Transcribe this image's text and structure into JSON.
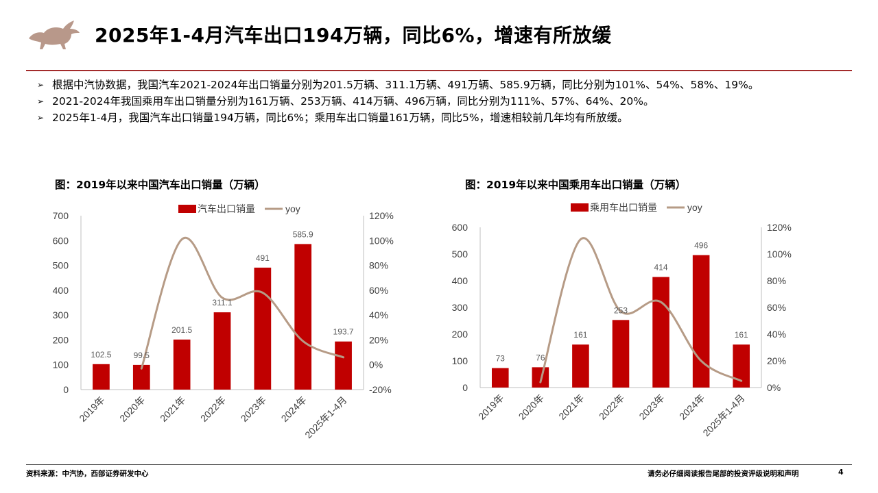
{
  "header": {
    "title": "2025年1-4月汽车出口194万辆，同比6%，增速有所放缓"
  },
  "bullets": [
    "根据中汽协数据，我国汽车2021-2024年出口销量分别为201.5万辆、311.1万辆、491万辆、585.9万辆，同比分别为101%、54%、58%、19%。",
    "2021-2024年我国乘用车出口销量分别为161万辆、253万辆、414万辆、496万辆，同比分别为111%、57%、64%、20%。",
    "2025年1-4月，我国汽车出口销量194万辆，同比6%；乘用车出口销量161万辆，同比5%，增速相较前几年均有所放缓。"
  ],
  "colors": {
    "bar": "#c00000",
    "line": "#b69b86",
    "accent": "#a32b2b"
  },
  "chart_data": [
    {
      "type": "bar",
      "title": "图：2019年以来中国汽车出口销量（万辆）",
      "categories": [
        "2019年",
        "2020年",
        "2021年",
        "2022年",
        "2023年",
        "2024年",
        "2025年1-4月"
      ],
      "series": [
        {
          "name": "汽车出口销量",
          "type": "bar",
          "axis": "left",
          "values": [
            102.5,
            99.5,
            201.5,
            311.1,
            491,
            585.9,
            193.7
          ]
        },
        {
          "name": "yoy",
          "type": "line",
          "axis": "right",
          "values": [
            null,
            -3,
            101,
            54,
            58,
            19,
            6
          ]
        }
      ],
      "data_labels": [
        "102.5",
        "99.5",
        "201.5",
        "311.1",
        "491",
        "585.9",
        "193.7"
      ],
      "ylim_left": [
        0,
        700
      ],
      "yticks_left": [
        "0",
        "100",
        "200",
        "300",
        "400",
        "500",
        "600",
        "700"
      ],
      "ylim_right": [
        -20,
        120
      ],
      "yticks_right": [
        "-20%",
        "0%",
        "20%",
        "40%",
        "60%",
        "80%",
        "100%",
        "120%"
      ],
      "legend": "top",
      "grid": false
    },
    {
      "type": "bar",
      "title": "图：2019年以来中国乘用车出口销量（万辆）",
      "categories": [
        "2019年",
        "2020年",
        "2021年",
        "2022年",
        "2023年",
        "2024年",
        "2025年1-4月"
      ],
      "series": [
        {
          "name": "乘用车出口销量",
          "type": "bar",
          "axis": "left",
          "values": [
            73,
            76,
            161,
            253,
            414,
            496,
            161
          ]
        },
        {
          "name": "yoy",
          "type": "line",
          "axis": "right",
          "values": [
            null,
            4,
            111,
            57,
            64,
            20,
            5
          ]
        }
      ],
      "data_labels": [
        "73",
        "76",
        "161",
        "253",
        "414",
        "496",
        "161"
      ],
      "ylim_left": [
        0,
        600
      ],
      "yticks_left": [
        "0",
        "100",
        "200",
        "300",
        "400",
        "500",
        "600"
      ],
      "ylim_right": [
        0,
        120
      ],
      "yticks_right": [
        "0%",
        "20%",
        "40%",
        "60%",
        "80%",
        "100%",
        "120%"
      ],
      "legend": "top",
      "grid": false
    }
  ],
  "footer": {
    "source": "资料来源：中汽协，西部证券研发中心",
    "disclaimer": "请务必仔细阅读报告尾部的投资评级说明和声明",
    "page": "4"
  }
}
